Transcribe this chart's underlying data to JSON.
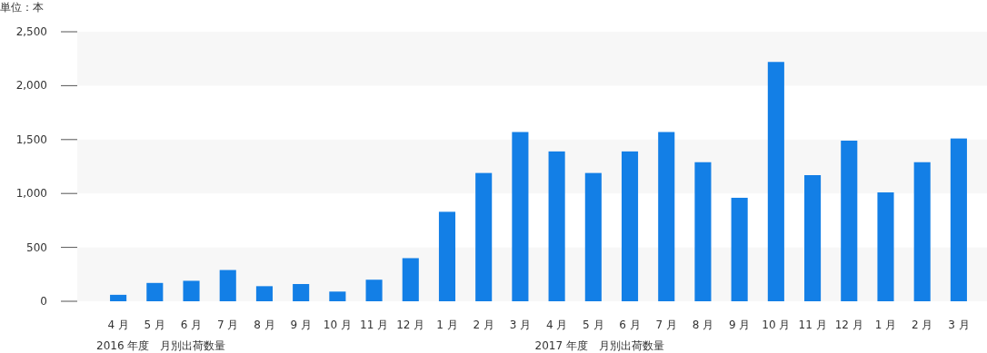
{
  "chart_data": {
    "type": "bar",
    "ylabel": "単位：本",
    "categories": [
      "4 月",
      "5 月",
      "6 月",
      "7 月",
      "8 月",
      "9 月",
      "10 月",
      "11 月",
      "12 月",
      "1 月",
      "2 月",
      "3 月",
      "4 月",
      "5 月",
      "6 月",
      "7 月",
      "8 月",
      "9 月",
      "10 月",
      "11 月",
      "12 月",
      "1 月",
      "2 月",
      "3 月"
    ],
    "values": [
      60,
      170,
      190,
      290,
      140,
      160,
      90,
      200,
      400,
      830,
      1190,
      1570,
      1390,
      1190,
      1390,
      1570,
      1290,
      960,
      2220,
      1170,
      1490,
      1010,
      1290,
      1510
    ],
    "color": "#137fe6",
    "ylim": [
      0,
      2500
    ],
    "yticks": [
      {
        "value": 0,
        "label": "0"
      },
      {
        "value": 500,
        "label": "500"
      },
      {
        "value": 1000,
        "label": "1,000"
      },
      {
        "value": 1500,
        "label": "1,500"
      },
      {
        "value": 2000,
        "label": "2,000"
      },
      {
        "value": 2500,
        "label": "2,500"
      }
    ],
    "bands": [
      {
        "axis": "y",
        "from": 0,
        "to": 500,
        "color": "#f7f7f7"
      },
      {
        "axis": "y",
        "from": 1000,
        "to": 1500,
        "color": "#f7f7f7"
      },
      {
        "axis": "y",
        "from": 2000,
        "to": 2500,
        "color": "#f7f7f7"
      }
    ],
    "annotations": [
      "2016 年度　月別出荷数量",
      "2017 年度　月別出荷数量"
    ]
  }
}
